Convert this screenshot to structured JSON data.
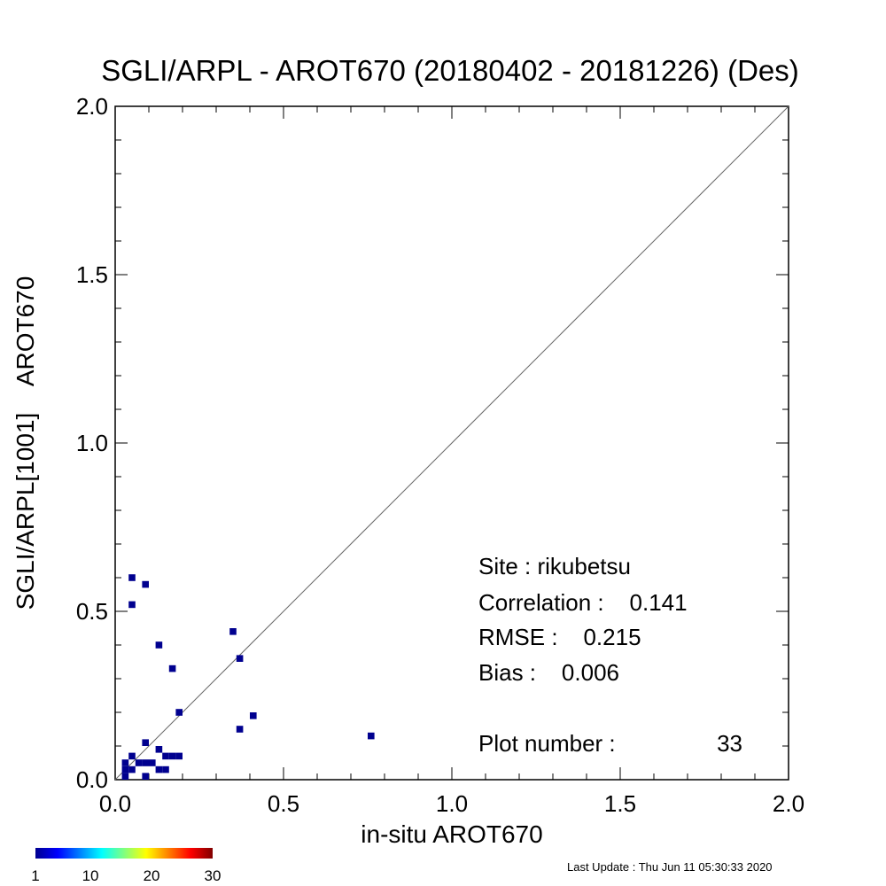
{
  "chart_data": {
    "type": "scatter",
    "title": "SGLI/ARPL - AROT670 (20180402 - 20181226) (Des)",
    "xlabel": "in-situ AROT670",
    "ylabel": "SGLI/ARPL[1001]    AROT670",
    "xlim": [
      0.0,
      2.0
    ],
    "ylim": [
      0.0,
      2.0
    ],
    "x_ticks": [
      "0.0",
      "0.5",
      "1.0",
      "1.5",
      "2.0"
    ],
    "y_ticks": [
      "0.0",
      "0.5",
      "1.0",
      "1.5",
      "2.0"
    ],
    "tick_values": [
      0.0,
      0.5,
      1.0,
      1.5,
      2.0
    ],
    "minor_step": 0.1,
    "reference_line": [
      [
        0,
        0
      ],
      [
        2,
        2
      ]
    ],
    "grid": false,
    "point_color": "#00008f",
    "points": [
      [
        0.05,
        0.6
      ],
      [
        0.09,
        0.58
      ],
      [
        0.05,
        0.52
      ],
      [
        0.35,
        0.44
      ],
      [
        0.13,
        0.4
      ],
      [
        0.37,
        0.36
      ],
      [
        0.17,
        0.33
      ],
      [
        0.19,
        0.2
      ],
      [
        0.41,
        0.19
      ],
      [
        0.37,
        0.15
      ],
      [
        0.76,
        0.13
      ],
      [
        0.09,
        0.11
      ],
      [
        0.13,
        0.09
      ],
      [
        0.05,
        0.07
      ],
      [
        0.15,
        0.07
      ],
      [
        0.17,
        0.07
      ],
      [
        0.19,
        0.07
      ],
      [
        0.03,
        0.05
      ],
      [
        0.07,
        0.05
      ],
      [
        0.09,
        0.05
      ],
      [
        0.11,
        0.05
      ],
      [
        0.03,
        0.03
      ],
      [
        0.05,
        0.03
      ],
      [
        0.13,
        0.03
      ],
      [
        0.15,
        0.03
      ],
      [
        0.03,
        0.01
      ],
      [
        0.09,
        0.01
      ]
    ],
    "stats": {
      "site": "Site : rikubetsu",
      "correlation": "Correlation :    0.141",
      "rmse": "RMSE :    0.215",
      "bias": "Bias :    0.006",
      "plot_number": "Plot number :",
      "plot_number_value": "33"
    },
    "colorbar": {
      "colors": [
        "#00008f",
        "#0000ff",
        "#0080ff",
        "#00ffff",
        "#80ff80",
        "#ffff00",
        "#ff8000",
        "#ff0000",
        "#800000"
      ],
      "tick_labels": [
        "1",
        "10",
        "20",
        "30"
      ],
      "tick_values": [
        1,
        10,
        20,
        30
      ],
      "range": [
        1,
        30
      ]
    }
  },
  "footer": {
    "last_update": "Last Update : Thu Jun 11 05:30:33 2020"
  }
}
